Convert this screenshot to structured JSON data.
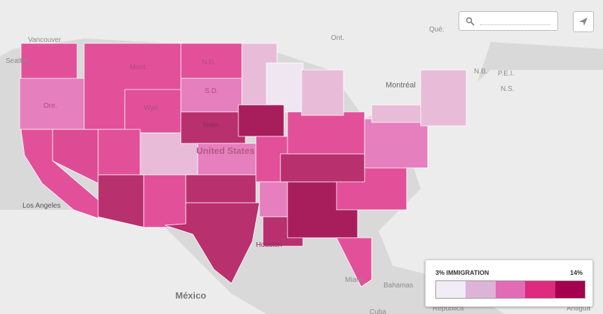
{
  "map": {
    "labels": [
      "Vancouver",
      "Seattle",
      "Ont.",
      "Qué.",
      "Montréal",
      "N.B.",
      "P.E.I.",
      "N.S.",
      "Mont.",
      "N.D.",
      "S.D.",
      "Wyo.",
      "Nebr.",
      "Ore.",
      "United States",
      "Los Angeles",
      "México",
      "Bahamas",
      "Houston",
      "Miami",
      "Cuba",
      "República",
      "Antigua"
    ]
  },
  "legend": {
    "title": "3% IMMIGRATION",
    "max_label": "14%",
    "colors": [
      "#f1ecf6",
      "#ddb4d8",
      "#e16bb6",
      "#de2a7f",
      "#a4004f"
    ]
  }
}
